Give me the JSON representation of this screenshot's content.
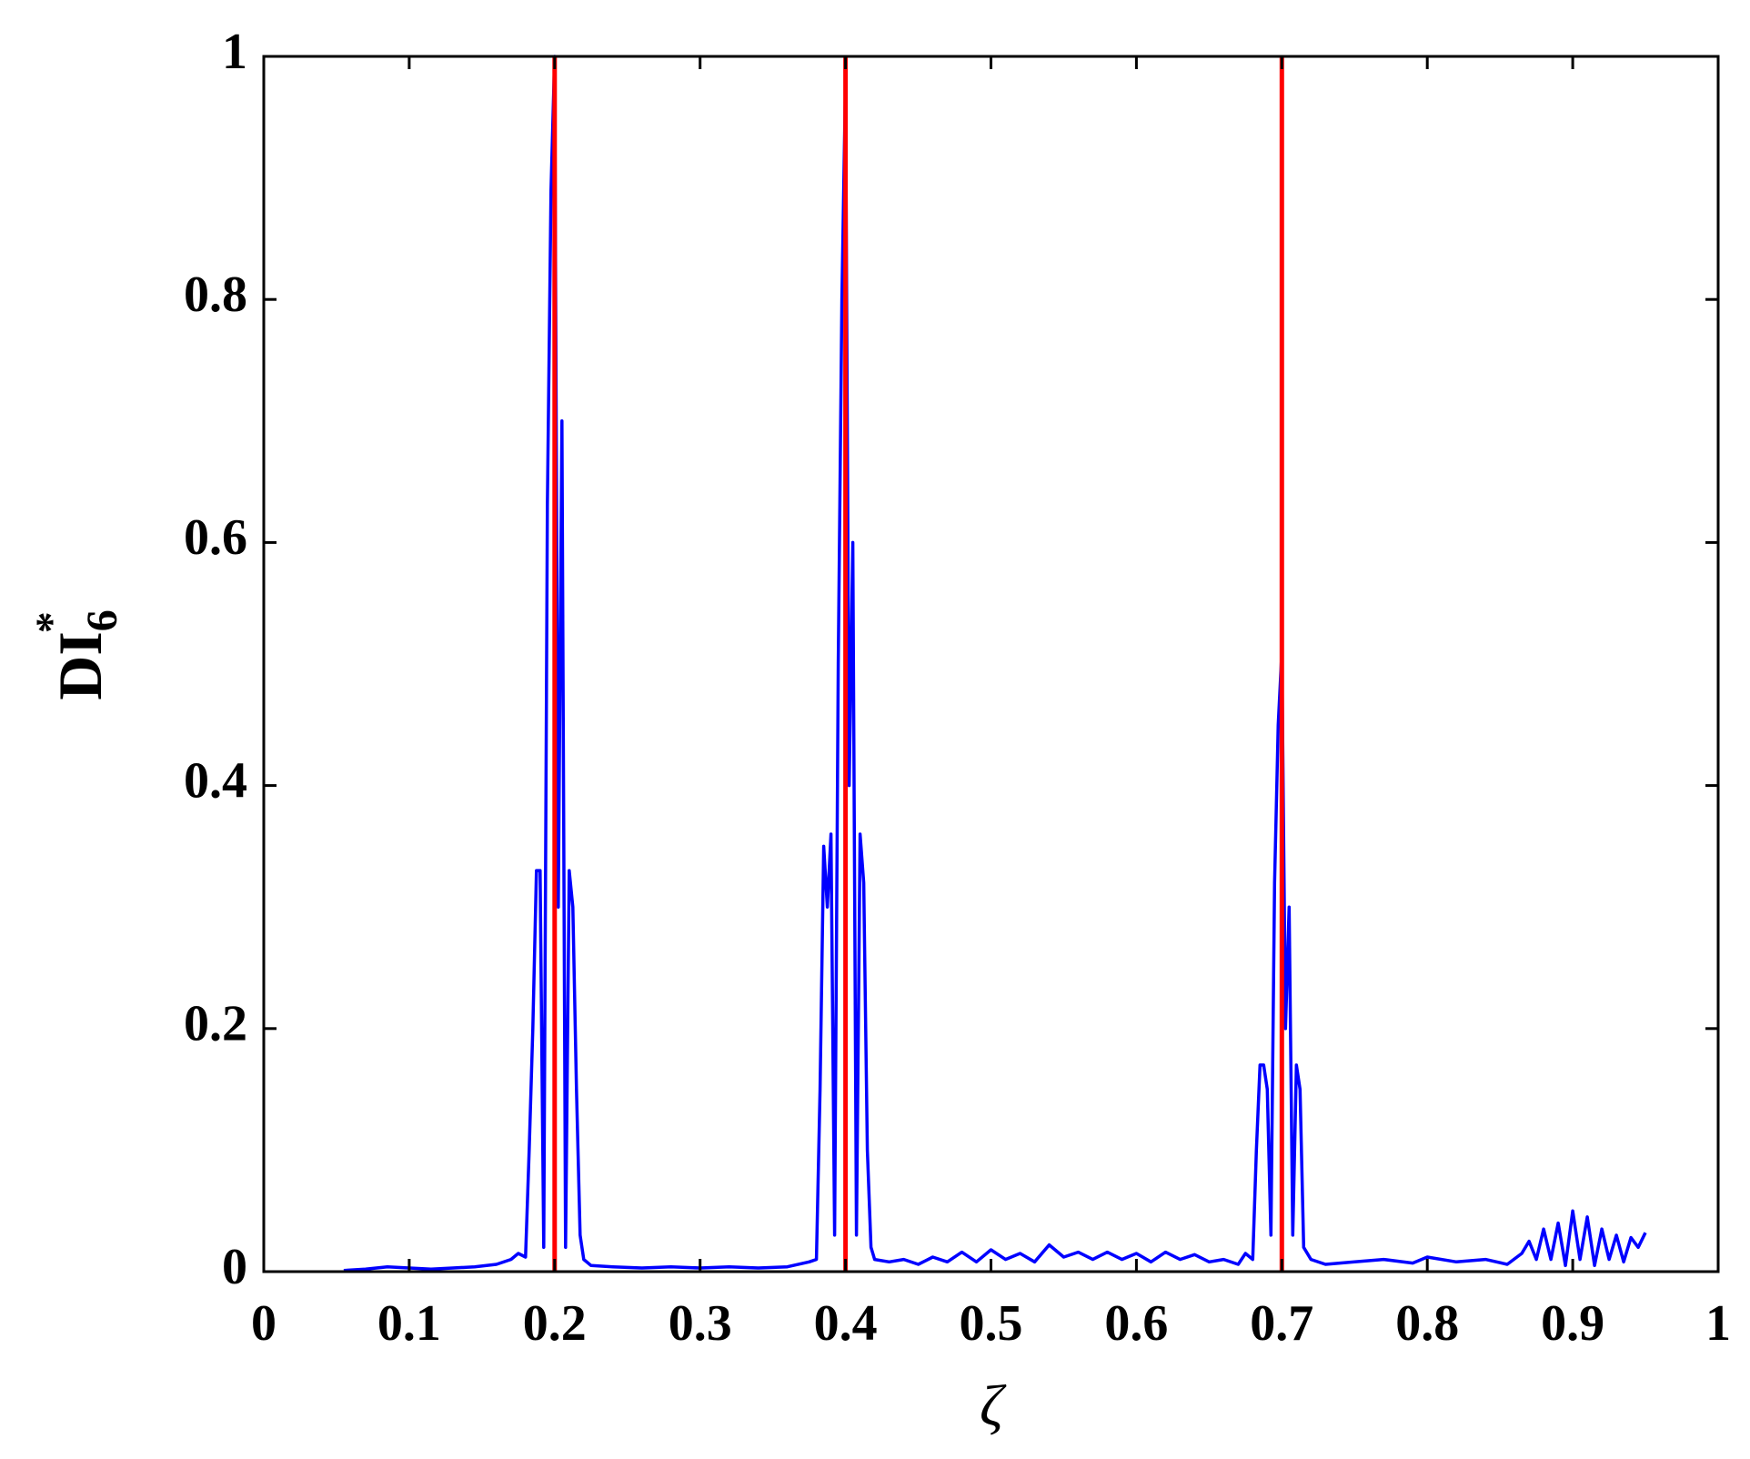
{
  "chart_data": {
    "type": "line",
    "xlabel": "ζ",
    "ylabel": {
      "main": "DI",
      "sub": "6",
      "sup": "*"
    },
    "xlim": [
      0,
      1
    ],
    "ylim": [
      0,
      1
    ],
    "xticks": [
      0,
      0.1,
      0.2,
      0.3,
      0.4,
      0.5,
      0.6,
      0.7,
      0.8,
      0.9,
      1
    ],
    "yticks": [
      0,
      0.2,
      0.4,
      0.6,
      0.8,
      1
    ],
    "vlines": {
      "x": [
        0.2,
        0.4,
        0.7
      ],
      "color": "#ff0000"
    },
    "series": [
      {
        "color": "#0000ff",
        "x": [
          0.055,
          0.07,
          0.085,
          0.1,
          0.115,
          0.13,
          0.145,
          0.16,
          0.17,
          0.175,
          0.18,
          0.1825,
          0.185,
          0.1875,
          0.19,
          0.1925,
          0.195,
          0.1975,
          0.2,
          0.2025,
          0.205,
          0.2075,
          0.21,
          0.2125,
          0.215,
          0.2175,
          0.22,
          0.225,
          0.24,
          0.26,
          0.28,
          0.3,
          0.32,
          0.34,
          0.36,
          0.375,
          0.38,
          0.3825,
          0.385,
          0.3875,
          0.39,
          0.3925,
          0.395,
          0.3975,
          0.4,
          0.4025,
          0.405,
          0.4075,
          0.41,
          0.4125,
          0.415,
          0.4175,
          0.42,
          0.43,
          0.44,
          0.45,
          0.46,
          0.47,
          0.48,
          0.49,
          0.5,
          0.51,
          0.52,
          0.53,
          0.54,
          0.55,
          0.56,
          0.57,
          0.58,
          0.59,
          0.6,
          0.61,
          0.62,
          0.63,
          0.64,
          0.65,
          0.66,
          0.67,
          0.675,
          0.68,
          0.6825,
          0.685,
          0.6875,
          0.69,
          0.6925,
          0.695,
          0.6975,
          0.7,
          0.7025,
          0.705,
          0.7075,
          0.71,
          0.7125,
          0.715,
          0.72,
          0.73,
          0.75,
          0.77,
          0.79,
          0.8,
          0.82,
          0.84,
          0.855,
          0.865,
          0.87,
          0.875,
          0.88,
          0.885,
          0.89,
          0.895,
          0.9,
          0.905,
          0.91,
          0.915,
          0.92,
          0.925,
          0.93,
          0.935,
          0.94,
          0.945,
          0.95
        ],
        "values": [
          0.001,
          0.002,
          0.004,
          0.003,
          0.002,
          0.003,
          0.004,
          0.006,
          0.01,
          0.015,
          0.012,
          0.1,
          0.2,
          0.33,
          0.33,
          0.02,
          0.63,
          0.89,
          1.0,
          0.3,
          0.7,
          0.02,
          0.33,
          0.3,
          0.15,
          0.03,
          0.01,
          0.005,
          0.004,
          0.003,
          0.004,
          0.003,
          0.004,
          0.003,
          0.004,
          0.008,
          0.01,
          0.15,
          0.35,
          0.3,
          0.36,
          0.03,
          0.5,
          0.8,
          0.98,
          0.4,
          0.6,
          0.03,
          0.36,
          0.32,
          0.1,
          0.02,
          0.01,
          0.008,
          0.01,
          0.006,
          0.012,
          0.008,
          0.016,
          0.008,
          0.018,
          0.01,
          0.015,
          0.008,
          0.022,
          0.012,
          0.016,
          0.01,
          0.016,
          0.01,
          0.015,
          0.008,
          0.016,
          0.01,
          0.014,
          0.008,
          0.01,
          0.006,
          0.015,
          0.01,
          0.1,
          0.17,
          0.17,
          0.15,
          0.03,
          0.32,
          0.45,
          0.51,
          0.2,
          0.3,
          0.03,
          0.17,
          0.15,
          0.02,
          0.01,
          0.006,
          0.008,
          0.01,
          0.007,
          0.012,
          0.008,
          0.01,
          0.006,
          0.015,
          0.025,
          0.01,
          0.035,
          0.01,
          0.04,
          0.005,
          0.05,
          0.01,
          0.045,
          0.005,
          0.035,
          0.01,
          0.03,
          0.008,
          0.028,
          0.02,
          0.032
        ]
      }
    ]
  }
}
